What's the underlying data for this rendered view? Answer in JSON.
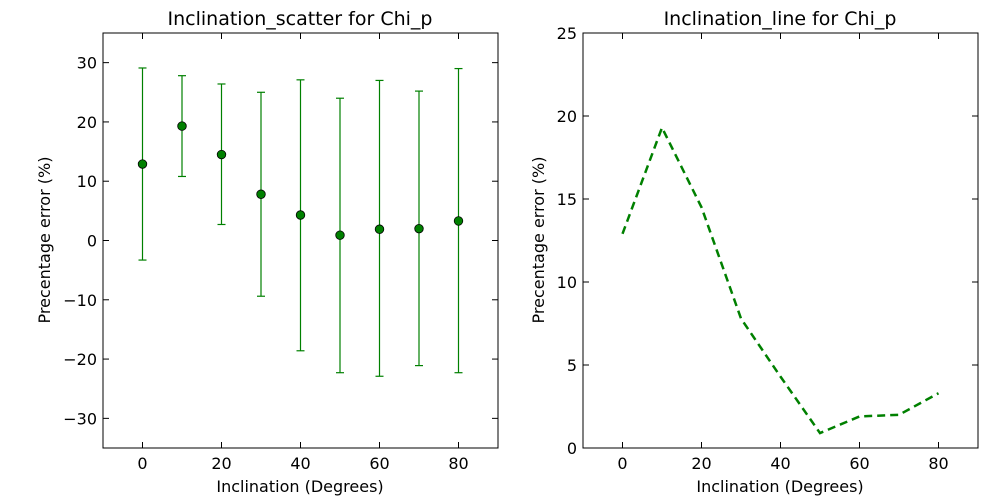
{
  "chart_data": [
    {
      "type": "scatter",
      "title": "Inclination_scatter for Chi_p",
      "xlabel": "Inclination (Degrees)",
      "ylabel": "Precentage error (%)",
      "xlim": [
        -10,
        90
      ],
      "ylim": [
        -35,
        35
      ],
      "xticks": [
        0,
        20,
        40,
        60,
        80
      ],
      "yticks": [
        -30,
        -20,
        -10,
        0,
        10,
        20,
        30
      ],
      "yticklabels": [
        "−30",
        "−20",
        "−10",
        "0",
        "10",
        "20",
        "30"
      ],
      "color": "#008000",
      "series": [
        {
          "x": [
            0,
            10,
            20,
            30,
            40,
            50,
            60,
            70,
            80
          ],
          "y": [
            12.9,
            19.3,
            14.5,
            7.8,
            4.3,
            0.9,
            1.9,
            2.0,
            3.3
          ],
          "err_low": [
            -3.3,
            10.8,
            2.7,
            -9.4,
            -18.6,
            -22.3,
            -22.9,
            -21.1,
            -22.3
          ],
          "err_high": [
            29.1,
            27.8,
            26.4,
            25.0,
            27.1,
            24.0,
            27.0,
            25.2,
            29.0
          ]
        }
      ],
      "grid": false
    },
    {
      "type": "line",
      "title": "Inclination_line for Chi_p",
      "xlabel": "Inclination (Degrees)",
      "ylabel": "Precentage error (%)",
      "xlim": [
        -10,
        90
      ],
      "ylim": [
        0,
        25
      ],
      "xticks": [
        0,
        20,
        40,
        60,
        80
      ],
      "yticks": [
        0,
        5,
        10,
        15,
        20,
        25
      ],
      "yticklabels": [
        "0",
        "5",
        "10",
        "15",
        "20",
        "25"
      ],
      "color": "#008000",
      "series": [
        {
          "x": [
            0,
            10,
            20,
            30,
            40,
            50,
            60,
            70,
            80
          ],
          "y": [
            12.9,
            19.3,
            14.5,
            7.8,
            4.3,
            0.9,
            1.9,
            2.0,
            3.3
          ],
          "style": "dashed"
        }
      ],
      "grid": false
    }
  ]
}
